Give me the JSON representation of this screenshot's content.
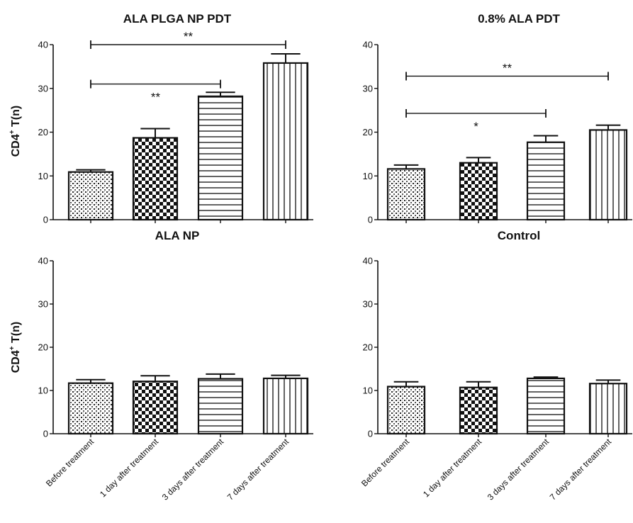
{
  "figure": {
    "ylabel_main": "CD4",
    "ylabel_sup": "+",
    "ylabel_rest": " T(n)"
  },
  "chart_data": [
    {
      "type": "bar",
      "title": "ALA PLGA NP PDT",
      "categories": [
        "Before treatment",
        "1 day after treatment",
        "3 days after treatment",
        "7 days after treatment"
      ],
      "values": [
        10.9,
        18.7,
        28.2,
        35.8
      ],
      "errors": [
        0.5,
        2.1,
        0.9,
        2.1
      ],
      "ylabel": "CD4+ T(n)",
      "ylim": [
        0,
        40
      ],
      "yticks": [
        "0",
        "10",
        "20",
        "30",
        "40"
      ],
      "show_xticklabels": false,
      "significance": [
        {
          "from": 0,
          "to": 3,
          "label": "**",
          "y": 40.0,
          "label_position": "above"
        },
        {
          "from": 0,
          "to": 2,
          "label": "**",
          "y": 31.0,
          "label_position": "below"
        }
      ]
    },
    {
      "type": "bar",
      "title": "0.8% ALA PDT",
      "categories": [
        "Before treatment",
        "1 day after treatment",
        "3 days after treatment",
        "7 days after treatment"
      ],
      "values": [
        11.6,
        13.0,
        17.7,
        20.5
      ],
      "errors": [
        0.9,
        1.2,
        1.5,
        1.1
      ],
      "ylabel": "",
      "ylim": [
        0,
        40
      ],
      "yticks": [
        "0",
        "10",
        "20",
        "30",
        "40"
      ],
      "show_xticklabels": false,
      "significance": [
        {
          "from": 0,
          "to": 3,
          "label": "**",
          "y": 32.8,
          "label_position": "above"
        },
        {
          "from": 0,
          "to": 2,
          "label": "*",
          "y": 24.3,
          "label_position": "below"
        }
      ]
    },
    {
      "type": "bar",
      "title": "ALA NP",
      "categories": [
        "Before treatment",
        "1 day after treatment",
        "3 days after treatment",
        "7 days after treatment"
      ],
      "values": [
        11.7,
        12.1,
        12.7,
        12.8
      ],
      "errors": [
        0.8,
        1.3,
        1.1,
        0.7
      ],
      "ylabel": "CD4+ T(n)",
      "ylim": [
        0,
        40
      ],
      "yticks": [
        "0",
        "10",
        "20",
        "30",
        "40"
      ],
      "show_xticklabels": true,
      "significance": []
    },
    {
      "type": "bar",
      "title": "Control",
      "categories": [
        "Before treatment",
        "1 day after treatment",
        "3 days after treatment",
        "7 days after treatment"
      ],
      "values": [
        10.9,
        10.7,
        12.8,
        11.6
      ],
      "errors": [
        1.1,
        1.3,
        0.3,
        0.8
      ],
      "ylabel": "",
      "ylim": [
        0,
        40
      ],
      "yticks": [
        "0",
        "10",
        "20",
        "30",
        "40"
      ],
      "show_xticklabels": true,
      "significance": []
    }
  ]
}
